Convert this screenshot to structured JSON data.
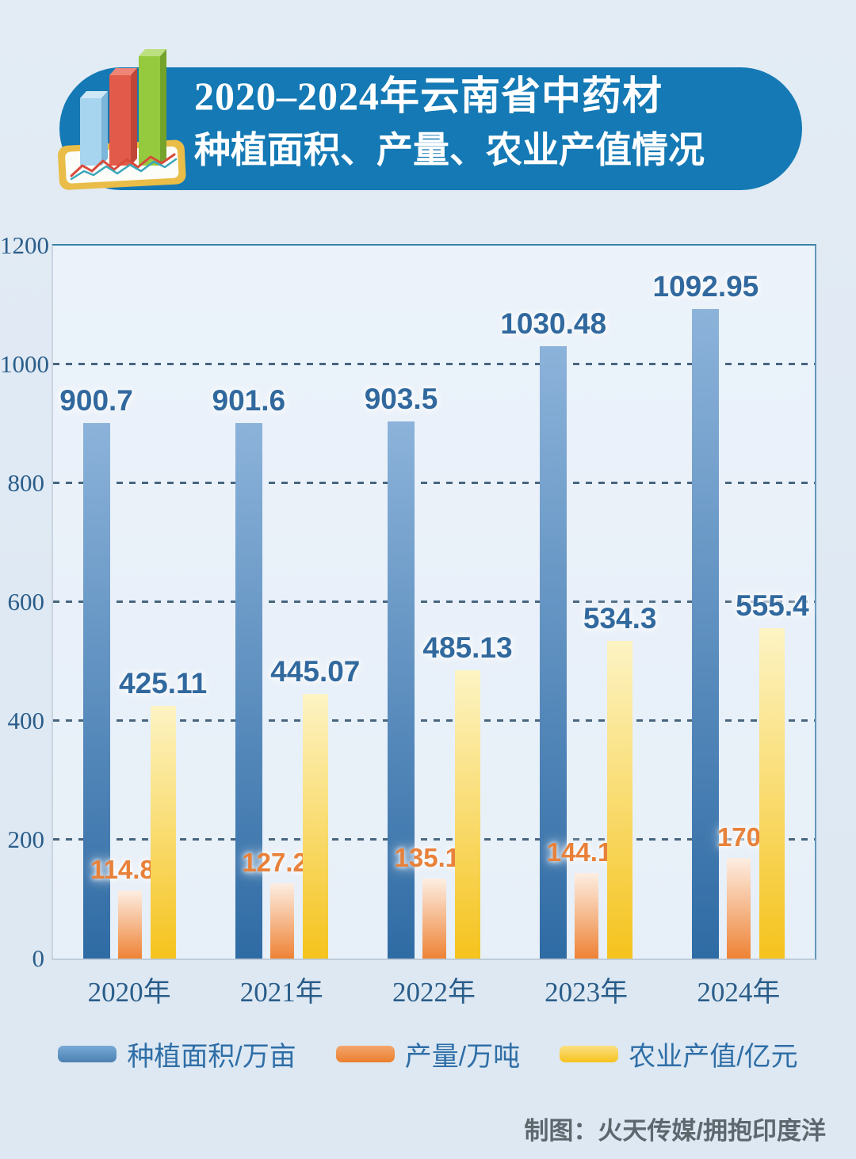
{
  "page": {
    "background": "#dfe9f3"
  },
  "header": {
    "title_line1": "2020–2024年云南省中药材",
    "title_line2": "种植面积、产量、农业产值情况",
    "banner_color": "#1479b4",
    "icon": "bar-chart-on-tablet-icon"
  },
  "chart_data": {
    "type": "bar",
    "title": "2020–2024年云南省中药材种植面积、产量、农业产值情况",
    "categories": [
      "2020年",
      "2021年",
      "2022年",
      "2023年",
      "2024年"
    ],
    "series": [
      {
        "name": "种植面积/万亩",
        "values": [
          900.7,
          901.6,
          903.5,
          1030.48,
          1092.95
        ],
        "bar_color_top": "#8cb3da",
        "bar_color_bottom": "#2f6ba4",
        "label_color": "#31699e",
        "legend_color_top": "#79aad6",
        "legend_color_bottom": "#4a80b1"
      },
      {
        "name": "产量/万吨",
        "values": [
          114.83,
          127.25,
          135.16,
          144.18,
          170
        ],
        "bar_color_top": "#fdeee2",
        "bar_color_bottom": "#ee8336",
        "label_color": "#e8813a",
        "legend_color_top": "#f4a56c",
        "legend_color_bottom": "#ea7f2e"
      },
      {
        "name": "农业产值/亿元",
        "values": [
          425.11,
          445.07,
          485.13,
          534.3,
          555.4
        ],
        "bar_color_top": "#fdf4c4",
        "bar_color_bottom": "#f5c31d",
        "label_color": "#31699e",
        "legend_color_top": "#fbdf83",
        "legend_color_bottom": "#f5c31d"
      }
    ],
    "xlabel": "",
    "ylabel": "",
    "ylim": [
      0,
      1200
    ],
    "yticks": [
      0,
      200,
      400,
      600,
      800,
      1000,
      1200
    ],
    "grid": "dashed horizontal gridlines, solid top and right frame",
    "legend_position": "bottom"
  },
  "footer": {
    "credit": "制图：火天传媒/拥抱印度洋"
  }
}
